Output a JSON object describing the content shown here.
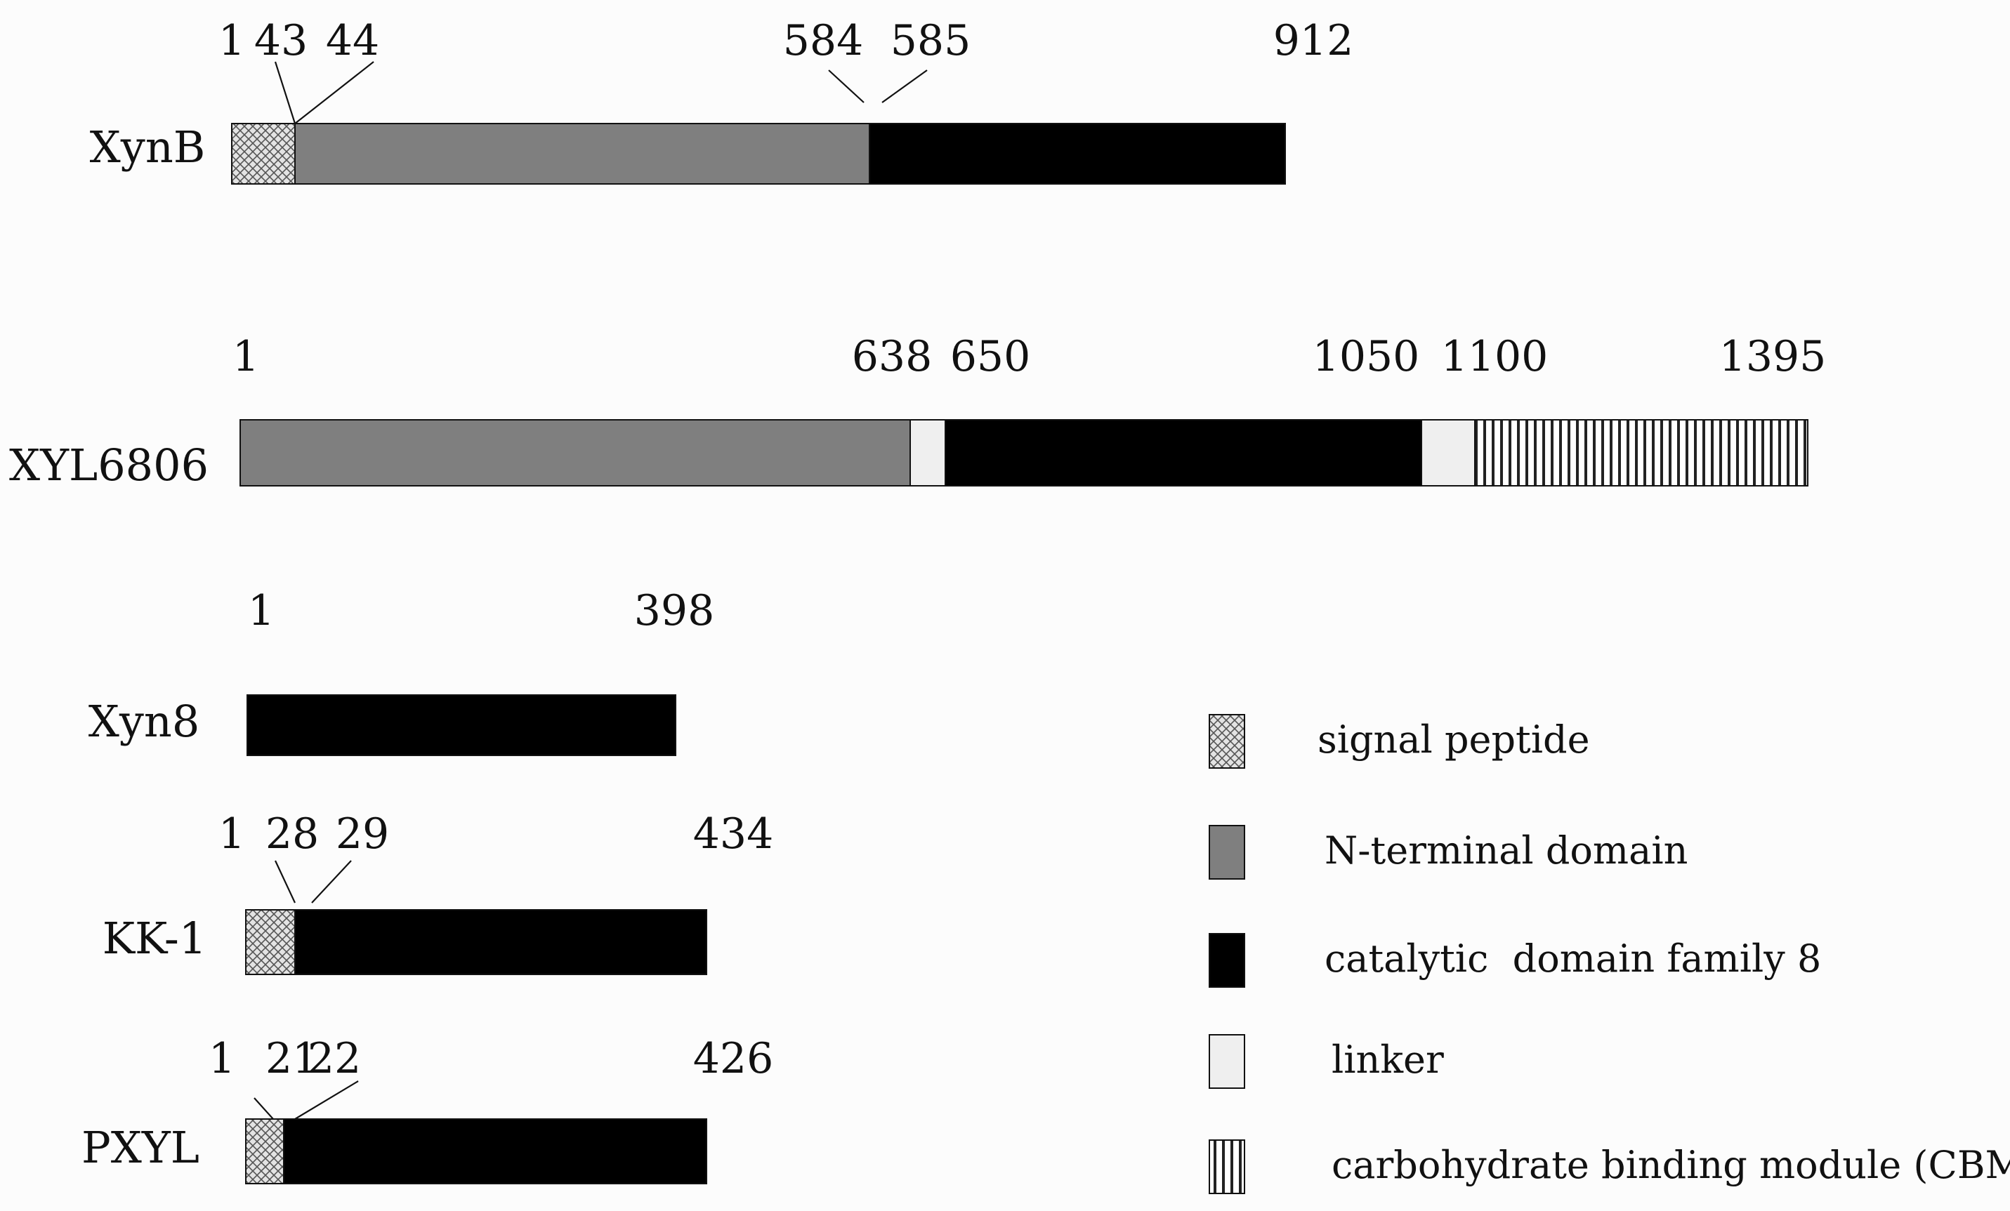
{
  "colors": {
    "background": "#fcfcfc",
    "signal_peptide": "#dcdcdc",
    "n_terminal": "#7f7f7f",
    "catalytic": "#000000",
    "linker": "#efefef",
    "cbm": "#ffffff",
    "outline": "#111111"
  },
  "proteins": [
    {
      "name": "XynB",
      "positions": [
        "1",
        "43",
        "44",
        "584",
        "585",
        "912"
      ],
      "segments": [
        {
          "domain": "signal_peptide",
          "start": 1,
          "end": 43
        },
        {
          "domain": "n_terminal",
          "start": 44,
          "end": 584
        },
        {
          "domain": "catalytic",
          "start": 585,
          "end": 912
        }
      ]
    },
    {
      "name": "XYL6806",
      "positions": [
        "1",
        "638",
        "650",
        "1050",
        "1100",
        "1395"
      ],
      "segments": [
        {
          "domain": "n_terminal",
          "start": 1,
          "end": 638
        },
        {
          "domain": "linker",
          "start": 638,
          "end": 650
        },
        {
          "domain": "catalytic",
          "start": 650,
          "end": 1050
        },
        {
          "domain": "linker",
          "start": 1050,
          "end": 1100
        },
        {
          "domain": "cbm",
          "start": 1100,
          "end": 1395
        }
      ]
    },
    {
      "name": "Xyn8",
      "positions": [
        "1",
        "398"
      ],
      "segments": [
        {
          "domain": "catalytic",
          "start": 1,
          "end": 398
        }
      ]
    },
    {
      "name": "KK-1",
      "positions": [
        "1",
        "28",
        "29",
        "434"
      ],
      "segments": [
        {
          "domain": "signal_peptide",
          "start": 1,
          "end": 28
        },
        {
          "domain": "catalytic",
          "start": 29,
          "end": 434
        }
      ]
    },
    {
      "name": "PXYL",
      "positions": [
        "1",
        "21",
        "22",
        "426"
      ],
      "segments": [
        {
          "domain": "signal_peptide",
          "start": 1,
          "end": 21
        },
        {
          "domain": "catalytic",
          "start": 22,
          "end": 426
        }
      ]
    }
  ],
  "legend": [
    {
      "domain": "signal_peptide",
      "label": "signal peptide"
    },
    {
      "domain": "n_terminal",
      "label": "N-terminal domain"
    },
    {
      "domain": "catalytic",
      "label": "catalytic  domain family 8"
    },
    {
      "domain": "linker",
      "label": "linker"
    },
    {
      "domain": "cbm",
      "label": "carbohydrate binding module (CBM)"
    }
  ]
}
